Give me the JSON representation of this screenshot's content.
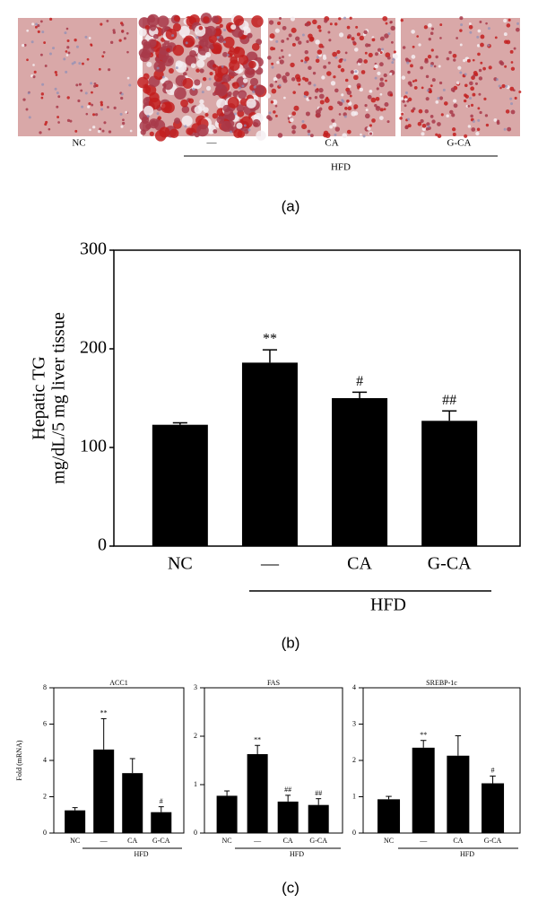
{
  "panel_a": {
    "categories": [
      "NC",
      "—",
      "CA",
      "G-CA"
    ],
    "group_label": "HFD",
    "panel_label": "(a)"
  },
  "chart_data": [
    {
      "type": "bar",
      "panel_label": "(b)",
      "ylabel": [
        "Hepatic TG",
        "mg/dL/5 mg liver tissue"
      ],
      "categories": [
        "NC",
        "—",
        "CA",
        "G-CA"
      ],
      "group_label": "HFD",
      "values": [
        123,
        186,
        150,
        127
      ],
      "errors": [
        2,
        13,
        6,
        10
      ],
      "annotations": [
        null,
        "**",
        "#",
        "##"
      ],
      "color": "#000000",
      "ylim": [
        0,
        300
      ],
      "yticks": [
        0,
        100,
        200,
        300
      ]
    },
    {
      "type": "bar",
      "title": "ACC1",
      "ylabel": "Fold (mRNA)",
      "categories": [
        "NC",
        "—",
        "CA",
        "G-CA"
      ],
      "group_label": "HFD",
      "values": [
        1.25,
        4.6,
        3.3,
        1.15
      ],
      "errors": [
        0.15,
        1.7,
        0.8,
        0.3
      ],
      "annotations": [
        null,
        "**",
        null,
        "#"
      ],
      "color": "#000000",
      "ylim": [
        0,
        8
      ],
      "yticks": [
        0,
        2,
        4,
        6,
        8
      ]
    },
    {
      "type": "bar",
      "title": "FAS",
      "categories": [
        "NC",
        "—",
        "CA",
        "G-CA"
      ],
      "group_label": "HFD",
      "values": [
        0.77,
        1.63,
        0.65,
        0.58
      ],
      "errors": [
        0.1,
        0.18,
        0.13,
        0.13
      ],
      "annotations": [
        null,
        "**",
        "##",
        "##"
      ],
      "color": "#000000",
      "ylim": [
        0,
        3
      ],
      "yticks": [
        0,
        1,
        2,
        3
      ]
    },
    {
      "type": "bar",
      "title": "SREBP-1c",
      "panel_label": "(c)",
      "categories": [
        "NC",
        "—",
        "CA",
        "G-CA"
      ],
      "group_label": "HFD",
      "values": [
        0.93,
        2.35,
        2.13,
        1.37
      ],
      "errors": [
        0.08,
        0.2,
        0.55,
        0.2
      ],
      "annotations": [
        null,
        "**",
        null,
        "#"
      ],
      "color": "#000000",
      "ylim": [
        0,
        4
      ],
      "yticks": [
        0,
        1,
        2,
        3,
        4
      ]
    }
  ]
}
